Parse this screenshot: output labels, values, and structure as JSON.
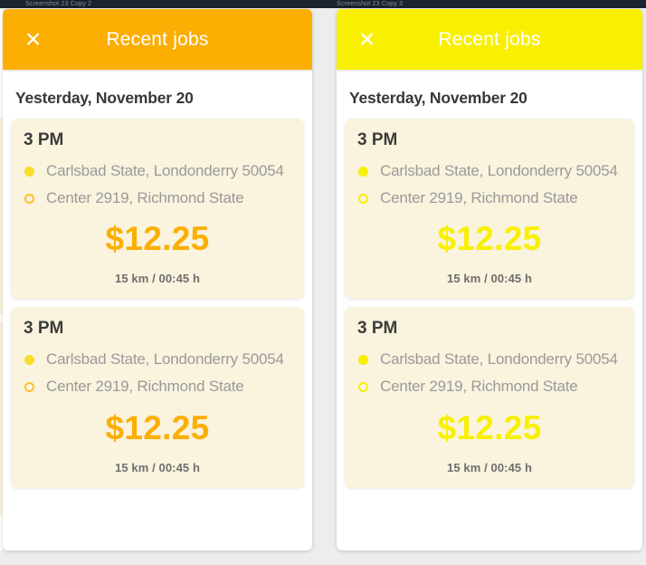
{
  "canvas": {
    "top_bar_color": "#1B2230",
    "background_color": "#EDEDED",
    "artboard_labels": [
      {
        "text": "Screenshot 23 Copy 2"
      },
      {
        "text": "Screenshot 23 Copy 3"
      }
    ]
  },
  "panels": [
    {
      "name": "recent-jobs-orange",
      "artboard_label": "Screenshot 23 Copy 2",
      "theme": {
        "accent": "#FCAF02",
        "pickup_dot": "#F8DE2A",
        "dropoff_ring": "#FDC02E",
        "card_bg": "#FAF3DE"
      },
      "header": {
        "title": "Recent jobs",
        "close_icon": "✕"
      },
      "date_heading": "Yesterday, November 20",
      "jobs": [
        {
          "time": "3 PM",
          "pickup": "Carlsbad State, Londonderry 50054",
          "dropoff": "Center 2919, Richmond State",
          "price": "$12.25",
          "distance_duration": "15 km / 00:45 h"
        },
        {
          "time": "3 PM",
          "pickup": "Carlsbad State, Londonderry 50054",
          "dropoff": "Center 2919, Richmond State",
          "price": "$12.25",
          "distance_duration": "15 km / 00:45 h"
        }
      ]
    },
    {
      "name": "recent-jobs-yellow",
      "artboard_label": "Screenshot 23 Copy 3",
      "theme": {
        "accent": "#F8F000",
        "pickup_dot": "#F8F000",
        "dropoff_ring": "#F8F000",
        "card_bg": "#FAF3DE"
      },
      "header": {
        "title": "Recent jobs",
        "close_icon": "✕"
      },
      "date_heading": "Yesterday, November 20",
      "jobs": [
        {
          "time": "3 PM",
          "pickup": "Carlsbad State, Londonderry 50054",
          "dropoff": "Center 2919, Richmond State",
          "price": "$12.25",
          "distance_duration": "15 km / 00:45 h"
        },
        {
          "time": "3 PM",
          "pickup": "Carlsbad State, Londonderry 50054",
          "dropoff": "Center 2919, Richmond State",
          "price": "$12.25",
          "distance_duration": "15 km / 00:45 h"
        }
      ]
    }
  ]
}
